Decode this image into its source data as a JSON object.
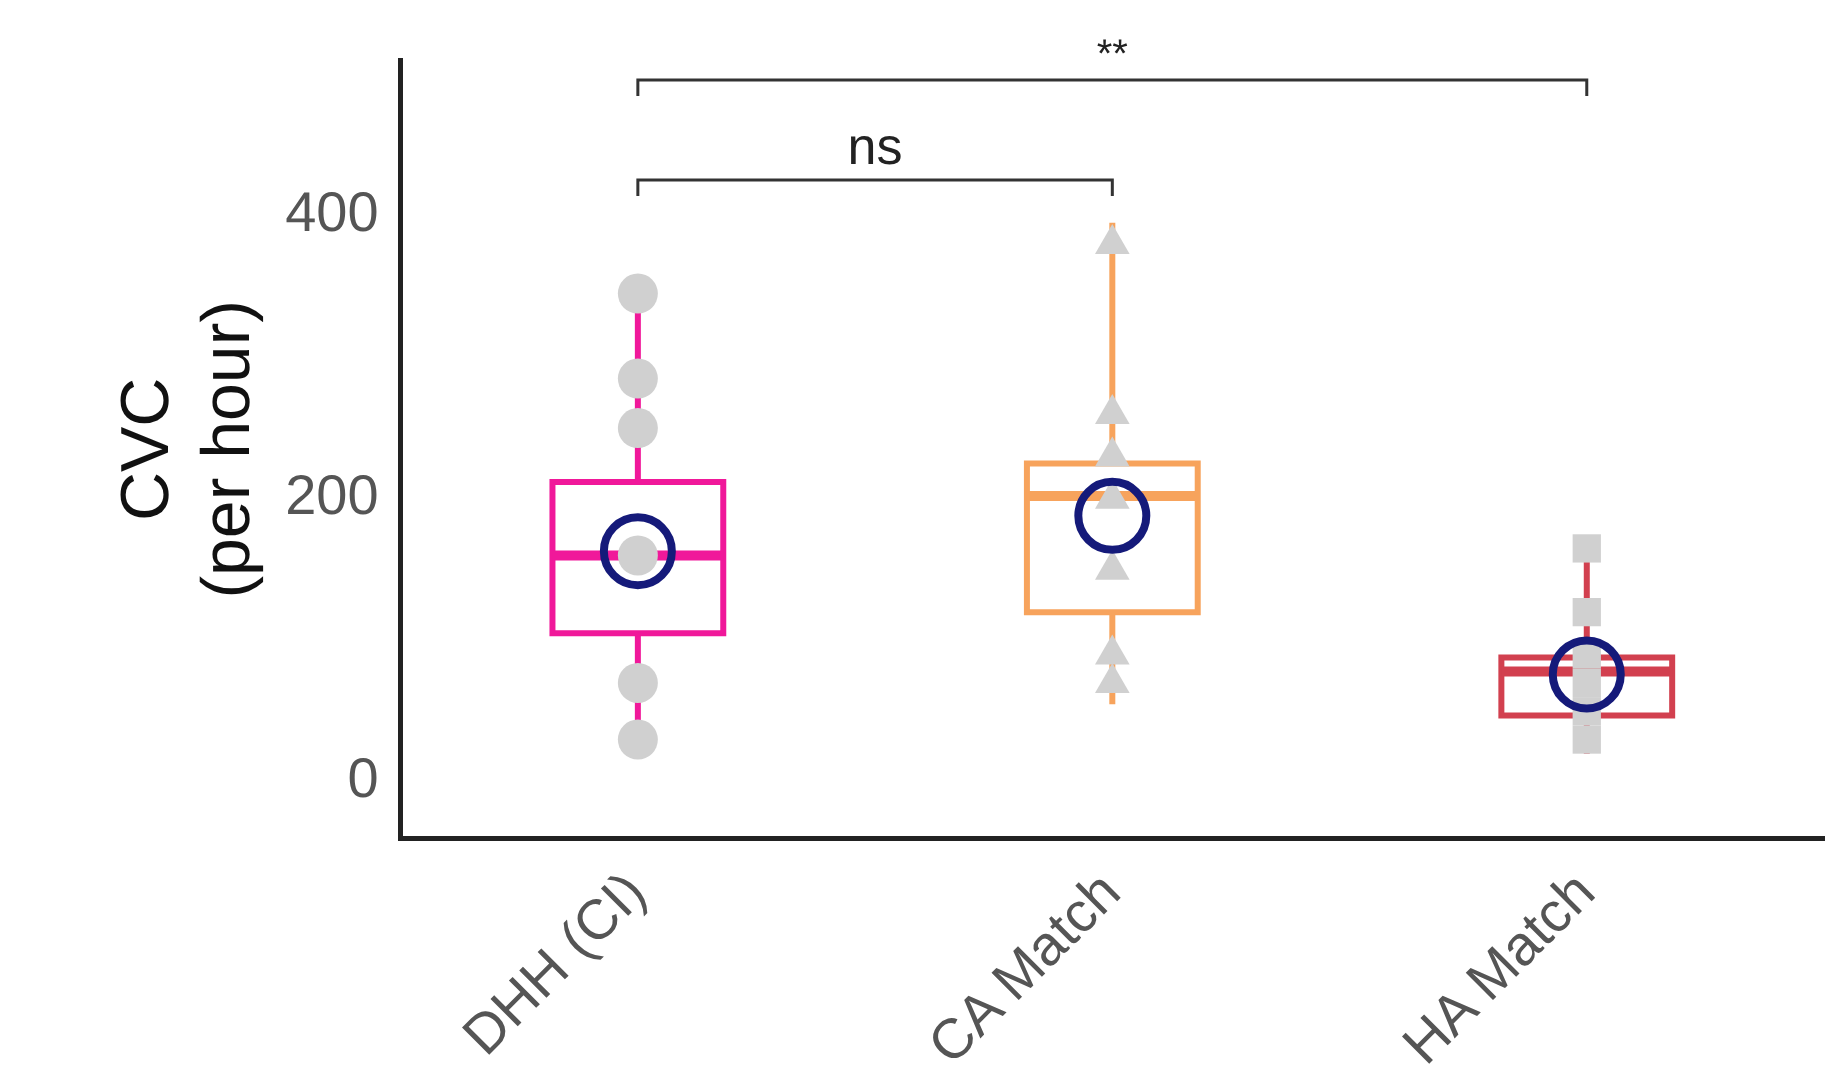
{
  "chart_data": {
    "type": "box",
    "ylabel": "CVC\n(per hour)",
    "categories": [
      "DHH (CI)",
      "CA Match",
      "HA Match"
    ],
    "colors": [
      "#f0189a",
      "#f7a35c",
      "#d2404f"
    ],
    "boxes": [
      {
        "low": 27,
        "q1": 105,
        "median": 160,
        "q3": 212,
        "high": 340,
        "mean": 163
      },
      {
        "low": 55,
        "q1": 120,
        "median": 202,
        "q3": 225,
        "high": 395,
        "mean": 188
      },
      {
        "low": 20,
        "q1": 47,
        "median": 78,
        "q3": 88,
        "high": 170,
        "mean": 76
      }
    ],
    "series": [
      {
        "type": "scatter",
        "color": "#d0d0d0",
        "marker": "circle",
        "x": [
          "DHH (CI)",
          "DHH (CI)",
          "DHH (CI)",
          "DHH (CI)",
          "DHH (CI)",
          "DHH (CI)"
        ],
        "values": [
          345,
          285,
          250,
          160,
          70,
          30
        ]
      },
      {
        "type": "scatter",
        "color": "#d0d0d0",
        "marker": "triangle",
        "x": [
          "CA Match",
          "CA Match",
          "CA Match",
          "CA Match",
          "CA Match",
          "CA Match",
          "CA Match"
        ],
        "values": [
          380,
          260,
          230,
          200,
          150,
          90,
          70
        ]
      },
      {
        "type": "scatter",
        "color": "#d0d0d0",
        "marker": "square",
        "x": [
          "HA Match",
          "HA Match",
          "HA Match",
          "HA Match",
          "HA Match",
          "HA Match"
        ],
        "values": [
          165,
          120,
          90,
          70,
          50,
          30
        ]
      }
    ],
    "ylim": [
      -40,
      510
    ],
    "yticks": [
      0,
      200,
      400
    ],
    "grid": false,
    "legend": false,
    "annotations": [
      "ns",
      "**"
    ]
  }
}
